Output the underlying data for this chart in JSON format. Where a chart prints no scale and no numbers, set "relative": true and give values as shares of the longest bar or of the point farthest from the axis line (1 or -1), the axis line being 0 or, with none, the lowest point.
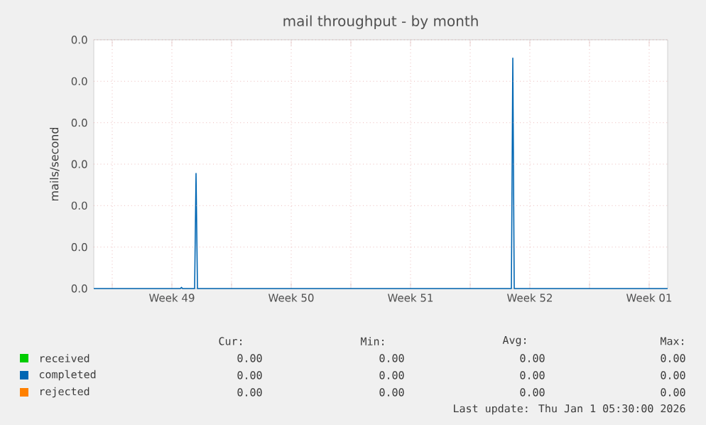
{
  "chart_data": {
    "type": "line",
    "title": "mail throughput - by month",
    "ylabel": "mails/second",
    "xlim": [
      "2025-11-29T22:00",
      "2026-01-02T14:00"
    ],
    "xticks": [
      {
        "value": "2025-12-01",
        "label": null
      },
      {
        "value": "2025-12-04T12:00",
        "label": "Week 49"
      },
      {
        "value": "2025-12-08",
        "label": null
      },
      {
        "value": "2025-12-11T12:00",
        "label": "Week 50"
      },
      {
        "value": "2025-12-15",
        "label": null
      },
      {
        "value": "2025-12-18T12:00",
        "label": "Week 51"
      },
      {
        "value": "2025-12-22",
        "label": null
      },
      {
        "value": "2025-12-25T12:00",
        "label": "Week 52"
      },
      {
        "value": "2025-12-29",
        "label": null
      },
      {
        "value": "2026-01-01T12:00",
        "label": "Week 01"
      }
    ],
    "relative": true,
    "grid": true,
    "legend": "bottom",
    "marker": "none",
    "series": [
      {
        "name": "received",
        "color": "#00cc00"
      },
      {
        "name": "completed",
        "color": "#0066b3",
        "x": [
          "2025-11-29T22:00",
          "2025-12-05T00:00",
          "2025-12-05T01:30",
          "2025-12-05T03:00",
          "2025-12-05T20:00",
          "2025-12-05T22:00",
          "2025-12-06T00:00",
          "2025-12-24T10:00",
          "2025-12-24T12:00",
          "2025-12-24T14:00",
          "2026-01-02T14:00"
        ],
        "values": [
          0,
          0,
          0.005,
          0,
          0,
          0.5,
          0,
          0,
          1,
          0,
          0
        ]
      },
      {
        "name": "rejected",
        "color": "#ff8000"
      }
    ],
    "annotations": [
      "Cur:",
      "Min:",
      "Avg:",
      "Max:",
      "0.00",
      "0.00",
      "0.00",
      "0.00",
      "0.00",
      "0.00",
      "0.00",
      "0.00",
      "0.00",
      "0.00",
      "0.00",
      "0.00",
      "Last update: Thu Jan  1 05:30:00 2026",
      "0.0",
      "0.0",
      "0.0",
      "0.0",
      "0.0",
      "0.0",
      "0.0"
    ]
  }
}
